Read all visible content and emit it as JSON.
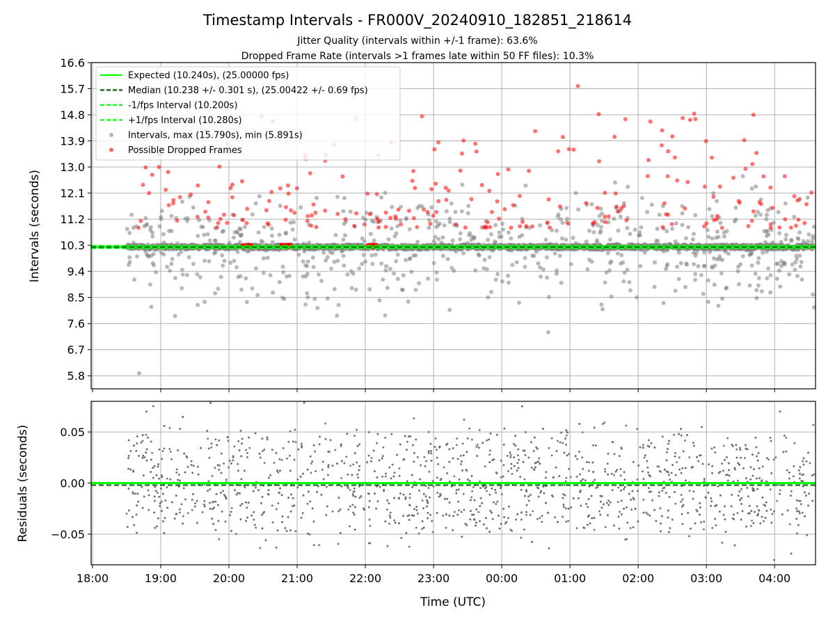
{
  "title": "Timestamp Intervals - FR000V_20240910_182851_218614",
  "subtitle_1": "Jitter Quality (intervals within +/-1 frame): 63.6%",
  "subtitle_2": "Dropped Frame Rate (intervals >1 frames late within 50 FF files): 10.3%",
  "chart_data": [
    {
      "type": "scatter",
      "panel": "intervals",
      "xlabel": "",
      "ylabel": "Intervals (seconds)",
      "ylim": [
        5.35,
        16.6
      ],
      "yticks": [
        "16.6",
        "15.7",
        "14.8",
        "13.9",
        "13.0",
        "12.1",
        "11.2",
        "10.3",
        "9.4",
        "8.5",
        "7.6",
        "6.7",
        "5.8"
      ],
      "xlim_hours": [
        -0.02,
        10.6
      ],
      "grid": true,
      "legend_position": "upper-left",
      "legend": [
        {
          "label": "Expected (10.240s), (25.00000 fps)",
          "style": "solid-line",
          "color": "#00ff00"
        },
        {
          "label": "Median (10.238 +/- 0.301 s), (25.00422 +/- 0.69 fps)",
          "style": "dashed-line",
          "color": "#006400"
        },
        {
          "label": "-1/fps Interval (10.200s)",
          "style": "dashed-line",
          "color": "#00ff00"
        },
        {
          "label": "+1/fps Interval (10.280s)",
          "style": "dashed-line",
          "color": "#00ff00"
        },
        {
          "label": "Intervals, max (15.790s), min (5.891s)",
          "style": "marker",
          "color": "#808080"
        },
        {
          "label": "Possible Dropped Frames",
          "style": "marker",
          "color": "#ff0000"
        }
      ],
      "reference_lines": {
        "expected": 10.24,
        "median": 10.238,
        "minus_one_frame": 10.2,
        "plus_one_frame": 10.28
      },
      "series": [
        {
          "name": "Intervals, max (15.790s), min (5.891s)",
          "color": "#808080",
          "time_range": [
            "18:30",
            "04:35"
          ],
          "center": 10.24,
          "max": 15.79,
          "min": 5.891
        },
        {
          "name": "Possible Dropped Frames",
          "color": "#ff0000",
          "time_range": [
            "18:30",
            "04:35"
          ],
          "min": 10.28,
          "max": 15.79
        }
      ],
      "dropped_clusters": [
        {
          "time": "20:16",
          "value": 10.28
        },
        {
          "time": "20:50",
          "value": 10.28
        },
        {
          "time": "22:06",
          "value": 10.28
        }
      ]
    },
    {
      "type": "scatter",
      "panel": "residuals",
      "xlabel": "Time (UTC)",
      "ylabel": "Residuals (seconds)",
      "ylim": [
        -0.08,
        0.08
      ],
      "yticks": [
        "0.05",
        "0.00",
        "−0.05"
      ],
      "xticks": [
        "18:00",
        "19:00",
        "20:00",
        "21:00",
        "22:00",
        "23:00",
        "00:00",
        "01:00",
        "02:00",
        "03:00",
        "04:00"
      ],
      "grid": true,
      "reference_lines": {
        "zero": 0.0,
        "median": -0.002
      },
      "series": [
        {
          "name": "",
          "color": "#808080",
          "time_range": [
            "18:30",
            "04:35"
          ],
          "min": -0.08,
          "max": 0.08
        }
      ]
    }
  ]
}
